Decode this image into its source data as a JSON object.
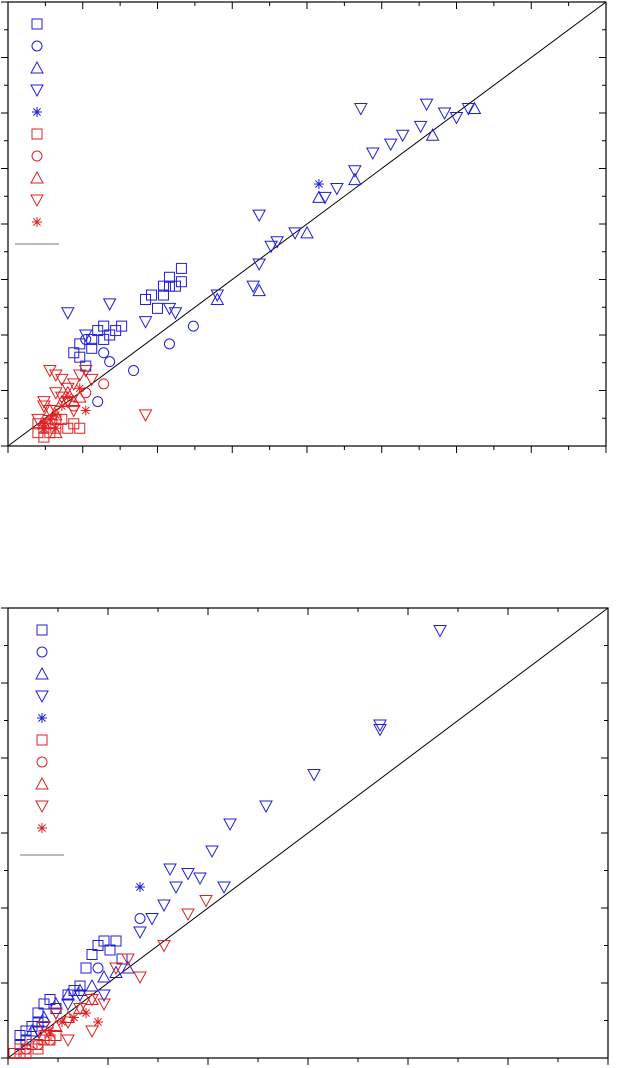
{
  "chart_data": [
    {
      "type": "scatter",
      "title": "",
      "xlabel": "",
      "ylabel": "",
      "xlim": [
        0,
        1
      ],
      "ylim": [
        0,
        1
      ],
      "grid": false,
      "legend_position": "top-left",
      "legend_series_count": 10,
      "diagonal_line": [
        [
          0,
          0
        ],
        [
          1,
          1
        ]
      ],
      "colors": {
        "blue": "#1f1fd6",
        "red": "#e02020",
        "line": "#000000"
      },
      "series": [
        {
          "marker": "square",
          "color": "#1f1fd6",
          "points": [
            [
              0.13,
              0.18
            ],
            [
              0.12,
              0.23
            ],
            [
              0.14,
              0.24
            ],
            [
              0.15,
              0.26
            ],
            [
              0.16,
              0.27
            ],
            [
              0.17,
              0.25
            ],
            [
              0.18,
              0.26
            ],
            [
              0.12,
              0.2
            ],
            [
              0.11,
              0.21
            ],
            [
              0.14,
              0.22
            ],
            [
              0.16,
              0.24
            ],
            [
              0.19,
              0.27
            ],
            [
              0.23,
              0.33
            ],
            [
              0.24,
              0.34
            ],
            [
              0.26,
              0.36
            ],
            [
              0.27,
              0.38
            ],
            [
              0.28,
              0.36
            ],
            [
              0.29,
              0.37
            ],
            [
              0.26,
              0.34
            ],
            [
              0.25,
              0.31
            ],
            [
              0.27,
              0.36
            ],
            [
              0.29,
              0.4
            ]
          ]
        },
        {
          "marker": "circle",
          "color": "#1f1fd6",
          "points": [
            [
              0.15,
              0.1
            ],
            [
              0.21,
              0.17
            ],
            [
              0.27,
              0.23
            ],
            [
              0.31,
              0.27
            ],
            [
              0.16,
              0.21
            ],
            [
              0.13,
              0.24
            ],
            [
              0.17,
              0.19
            ]
          ]
        },
        {
          "marker": "triangle-up",
          "color": "#1f1fd6",
          "points": [
            [
              0.35,
              0.33
            ],
            [
              0.5,
              0.48
            ],
            [
              0.58,
              0.6
            ],
            [
              0.71,
              0.7
            ],
            [
              0.78,
              0.76
            ],
            [
              0.42,
              0.35
            ],
            [
              0.52,
              0.56
            ]
          ]
        },
        {
          "marker": "triangle-down",
          "color": "#1f1fd6",
          "points": [
            [
              0.1,
              0.3
            ],
            [
              0.13,
              0.25
            ],
            [
              0.17,
              0.32
            ],
            [
              0.23,
              0.28
            ],
            [
              0.27,
              0.31
            ],
            [
              0.35,
              0.34
            ],
            [
              0.41,
              0.36
            ],
            [
              0.42,
              0.41
            ],
            [
              0.44,
              0.45
            ],
            [
              0.45,
              0.46
            ],
            [
              0.48,
              0.48
            ],
            [
              0.53,
              0.56
            ],
            [
              0.55,
              0.58
            ],
            [
              0.58,
              0.62
            ],
            [
              0.61,
              0.66
            ],
            [
              0.64,
              0.68
            ],
            [
              0.66,
              0.7
            ],
            [
              0.69,
              0.72
            ],
            [
              0.73,
              0.75
            ],
            [
              0.75,
              0.74
            ],
            [
              0.77,
              0.76
            ],
            [
              0.59,
              0.76
            ],
            [
              0.7,
              0.77
            ],
            [
              0.42,
              0.52
            ],
            [
              0.28,
              0.3
            ]
          ]
        },
        {
          "marker": "asterisk",
          "color": "#1f1fd6",
          "points": [
            [
              0.52,
              0.59
            ]
          ]
        },
        {
          "marker": "square",
          "color": "#e02020",
          "points": [
            [
              0.05,
              0.03
            ],
            [
              0.06,
              0.04
            ],
            [
              0.07,
              0.05
            ],
            [
              0.08,
              0.04
            ],
            [
              0.09,
              0.06
            ],
            [
              0.06,
              0.02
            ],
            [
              0.07,
              0.03
            ],
            [
              0.1,
              0.04
            ],
            [
              0.11,
              0.05
            ],
            [
              0.12,
              0.04
            ],
            [
              0.05,
              0.05
            ],
            [
              0.08,
              0.06
            ]
          ]
        },
        {
          "marker": "circle",
          "color": "#e02020",
          "points": [
            [
              0.11,
              0.09
            ],
            [
              0.13,
              0.12
            ],
            [
              0.16,
              0.14
            ]
          ]
        },
        {
          "marker": "triangle-up",
          "color": "#e02020",
          "points": [
            [
              0.06,
              0.05
            ],
            [
              0.07,
              0.08
            ],
            [
              0.08,
              0.07
            ],
            [
              0.09,
              0.1
            ],
            [
              0.1,
              0.12
            ],
            [
              0.11,
              0.1
            ],
            [
              0.12,
              0.11
            ],
            [
              0.08,
              0.03
            ]
          ]
        },
        {
          "marker": "triangle-down",
          "color": "#e02020",
          "points": [
            [
              0.05,
              0.06
            ],
            [
              0.06,
              0.1
            ],
            [
              0.07,
              0.08
            ],
            [
              0.08,
              0.12
            ],
            [
              0.09,
              0.15
            ],
            [
              0.1,
              0.13
            ],
            [
              0.11,
              0.14
            ],
            [
              0.12,
              0.16
            ],
            [
              0.13,
              0.17
            ],
            [
              0.14,
              0.15
            ],
            [
              0.07,
              0.17
            ],
            [
              0.08,
              0.16
            ],
            [
              0.06,
              0.09
            ],
            [
              0.23,
              0.07
            ],
            [
              0.09,
              0.11
            ],
            [
              0.1,
              0.1
            ],
            [
              0.11,
              0.08
            ]
          ]
        },
        {
          "marker": "asterisk",
          "color": "#e02020",
          "points": [
            [
              0.06,
              0.05
            ],
            [
              0.07,
              0.06
            ],
            [
              0.08,
              0.07
            ],
            [
              0.09,
              0.09
            ],
            [
              0.1,
              0.11
            ],
            [
              0.12,
              0.13
            ],
            [
              0.13,
              0.08
            ],
            [
              0.06,
              0.04
            ],
            [
              0.08,
              0.04
            ]
          ]
        }
      ]
    },
    {
      "type": "scatter",
      "title": "",
      "xlabel": "",
      "ylabel": "",
      "xlim": [
        0,
        1
      ],
      "ylim": [
        0,
        1
      ],
      "grid": false,
      "legend_position": "top-left",
      "legend_series_count": 10,
      "diagonal_line": [
        [
          0,
          0
        ],
        [
          1,
          1
        ]
      ],
      "colors": {
        "blue": "#1f1fd6",
        "red": "#e02020",
        "line": "#000000"
      },
      "series": [
        {
          "marker": "square",
          "color": "#1f1fd6",
          "points": [
            [
              0.02,
              0.05
            ],
            [
              0.03,
              0.06
            ],
            [
              0.04,
              0.07
            ],
            [
              0.05,
              0.1
            ],
            [
              0.06,
              0.12
            ],
            [
              0.07,
              0.13
            ],
            [
              0.08,
              0.11
            ],
            [
              0.1,
              0.14
            ],
            [
              0.11,
              0.15
            ],
            [
              0.12,
              0.16
            ],
            [
              0.13,
              0.2
            ],
            [
              0.14,
              0.23
            ],
            [
              0.15,
              0.25
            ],
            [
              0.16,
              0.26
            ],
            [
              0.17,
              0.24
            ],
            [
              0.18,
              0.26
            ],
            [
              0.19,
              0.22
            ],
            [
              0.02,
              0.03
            ],
            [
              0.03,
              0.04
            ],
            [
              0.05,
              0.08
            ]
          ]
        },
        {
          "marker": "circle",
          "color": "#1f1fd6",
          "points": [
            [
              0.22,
              0.31
            ],
            [
              0.15,
              0.2
            ],
            [
              0.06,
              0.08
            ]
          ]
        },
        {
          "marker": "triangle-up",
          "color": "#1f1fd6",
          "points": [
            [
              0.04,
              0.06
            ],
            [
              0.06,
              0.09
            ],
            [
              0.08,
              0.12
            ],
            [
              0.1,
              0.14
            ],
            [
              0.12,
              0.15
            ],
            [
              0.14,
              0.16
            ],
            [
              0.16,
              0.18
            ],
            [
              0.18,
              0.19
            ],
            [
              0.2,
              0.2
            ]
          ]
        },
        {
          "marker": "triangle-down",
          "color": "#1f1fd6",
          "points": [
            [
              0.05,
              0.06
            ],
            [
              0.08,
              0.1
            ],
            [
              0.1,
              0.12
            ],
            [
              0.12,
              0.14
            ],
            [
              0.16,
              0.14
            ],
            [
              0.22,
              0.28
            ],
            [
              0.24,
              0.31
            ],
            [
              0.26,
              0.34
            ],
            [
              0.28,
              0.38
            ],
            [
              0.3,
              0.41
            ],
            [
              0.32,
              0.4
            ],
            [
              0.36,
              0.38
            ],
            [
              0.34,
              0.46
            ],
            [
              0.37,
              0.52
            ],
            [
              0.43,
              0.56
            ],
            [
              0.51,
              0.63
            ],
            [
              0.62,
              0.74
            ],
            [
              0.62,
              0.73
            ],
            [
              0.72,
              0.95
            ],
            [
              0.27,
              0.42
            ]
          ]
        },
        {
          "marker": "asterisk",
          "color": "#1f1fd6",
          "points": [
            [
              0.22,
              0.38
            ]
          ]
        },
        {
          "marker": "square",
          "color": "#e02020",
          "points": [
            [
              0.01,
              0.01
            ],
            [
              0.02,
              0.02
            ],
            [
              0.03,
              0.02
            ],
            [
              0.04,
              0.03
            ],
            [
              0.05,
              0.03
            ],
            [
              0.06,
              0.04
            ],
            [
              0.07,
              0.04
            ],
            [
              0.08,
              0.05
            ],
            [
              0.02,
              0.01
            ],
            [
              0.03,
              0.01
            ],
            [
              0.05,
              0.02
            ],
            [
              0.06,
              0.05
            ]
          ]
        },
        {
          "marker": "circle",
          "color": "#e02020",
          "points": [
            [
              0.03,
              0.02
            ],
            [
              0.05,
              0.03
            ],
            [
              0.07,
              0.04
            ]
          ]
        },
        {
          "marker": "triangle-up",
          "color": "#e02020",
          "points": [
            [
              0.06,
              0.05
            ],
            [
              0.08,
              0.07
            ],
            [
              0.1,
              0.09
            ],
            [
              0.12,
              0.11
            ],
            [
              0.14,
              0.13
            ]
          ]
        },
        {
          "marker": "triangle-down",
          "color": "#e02020",
          "points": [
            [
              0.06,
              0.07
            ],
            [
              0.08,
              0.1
            ],
            [
              0.1,
              0.08
            ],
            [
              0.12,
              0.11
            ],
            [
              0.14,
              0.13
            ],
            [
              0.16,
              0.12
            ],
            [
              0.18,
              0.2
            ],
            [
              0.2,
              0.22
            ],
            [
              0.22,
              0.18
            ],
            [
              0.26,
              0.25
            ],
            [
              0.3,
              0.32
            ],
            [
              0.33,
              0.35
            ],
            [
              0.1,
              0.04
            ],
            [
              0.14,
              0.06
            ]
          ]
        },
        {
          "marker": "asterisk",
          "color": "#e02020",
          "points": [
            [
              0.07,
              0.06
            ],
            [
              0.09,
              0.08
            ],
            [
              0.11,
              0.09
            ],
            [
              0.13,
              0.1
            ],
            [
              0.15,
              0.08
            ]
          ]
        }
      ]
    }
  ]
}
